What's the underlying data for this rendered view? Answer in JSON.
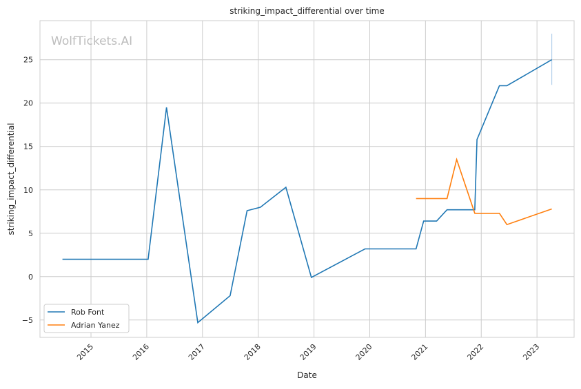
{
  "chart_data": {
    "type": "line",
    "title": "striking_impact_differential over time",
    "xlabel": "Date",
    "ylabel": "striking_impact_differential",
    "watermark": "WolfTickets.AI",
    "xlim": [
      "2014-02-01",
      "2023-09-01"
    ],
    "ylim": [
      -7,
      29.5
    ],
    "xticks": [
      "2015",
      "2016",
      "2017",
      "2018",
      "2019",
      "2020",
      "2021",
      "2022",
      "2023"
    ],
    "yticks": [
      -5,
      0,
      5,
      10,
      15,
      20,
      25
    ],
    "grid": true,
    "legend_placement": "lower-left",
    "series": [
      {
        "name": "Rob Font",
        "color": "#1f77b4",
        "x": [
          "2014-06-28",
          "2016-01-10",
          "2016-05-10",
          "2016-12-01",
          "2017-07-01",
          "2017-10-20",
          "2018-01-15",
          "2018-07-01",
          "2018-12-15",
          "2019-12-01",
          "2020-10-31",
          "2020-12-20",
          "2021-03-15",
          "2021-05-22",
          "2021-11-20",
          "2021-12-04",
          "2022-04-30",
          "2022-06-18",
          "2023-04-08"
        ],
        "y": [
          2.0,
          2.0,
          19.5,
          -5.3,
          -2.2,
          7.6,
          8.0,
          10.3,
          -0.1,
          3.2,
          3.2,
          6.4,
          6.4,
          7.7,
          7.7,
          15.8,
          22.0,
          22.0,
          25.0
        ]
      },
      {
        "name": "Adrian Yanez",
        "color": "#ff7f0e",
        "x": [
          "2020-10-31",
          "2021-05-22",
          "2021-07-24",
          "2021-11-20",
          "2022-04-30",
          "2022-06-18",
          "2023-04-08"
        ],
        "y": [
          9.0,
          9.0,
          13.5,
          7.3,
          7.3,
          6.0,
          7.8
        ]
      }
    ],
    "error_bar": {
      "x": "2023-04-08",
      "low": 22.1,
      "high": 28.0,
      "color": "#a6c8e8"
    }
  }
}
